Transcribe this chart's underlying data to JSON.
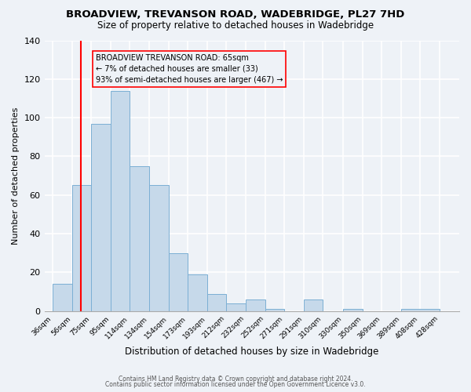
{
  "title": "BROADVIEW, TREVANSON ROAD, WADEBRIDGE, PL27 7HD",
  "subtitle": "Size of property relative to detached houses in Wadebridge",
  "xlabel": "Distribution of detached houses by size in Wadebridge",
  "ylabel": "Number of detached properties",
  "bar_values": [
    14,
    65,
    97,
    114,
    75,
    65,
    30,
    19,
    9,
    4,
    6,
    1,
    0,
    6,
    0,
    1,
    0,
    1
  ],
  "bar_left_edges": [
    36,
    56,
    75,
    95,
    114,
    134,
    154,
    173,
    193,
    212,
    232,
    252,
    271,
    291,
    310,
    330,
    350,
    389
  ],
  "bar_right_edges": [
    56,
    75,
    95,
    114,
    134,
    154,
    173,
    193,
    212,
    232,
    252,
    271,
    291,
    310,
    330,
    350,
    369,
    428
  ],
  "x_tick_positions": [
    36,
    56,
    75,
    95,
    114,
    134,
    154,
    173,
    193,
    212,
    232,
    252,
    271,
    291,
    310,
    330,
    350,
    369,
    389,
    408,
    428
  ],
  "x_tick_labels": [
    "36sqm",
    "56sqm",
    "75sqm",
    "95sqm",
    "114sqm",
    "134sqm",
    "154sqm",
    "173sqm",
    "193sqm",
    "212sqm",
    "232sqm",
    "252sqm",
    "271sqm",
    "291sqm",
    "310sqm",
    "330sqm",
    "350sqm",
    "369sqm",
    "389sqm",
    "408sqm",
    "428sqm"
  ],
  "ylim": [
    0,
    140
  ],
  "yticks": [
    0,
    20,
    40,
    60,
    80,
    100,
    120,
    140
  ],
  "bar_color": "#c6d9ea",
  "bar_edge_color": "#7bafd4",
  "red_line_x": 65,
  "annotation_title": "BROADVIEW TREVANSON ROAD: 65sqm",
  "annotation_line1": "← 7% of detached houses are smaller (33)",
  "annotation_line2": "93% of semi-detached houses are larger (467) →",
  "background_color": "#eef2f7",
  "grid_color": "#ffffff",
  "footer_line1": "Contains HM Land Registry data © Crown copyright and database right 2024.",
  "footer_line2": "Contains public sector information licensed under the Open Government Licence v3.0.",
  "xlim_left": 28,
  "xlim_right": 448
}
